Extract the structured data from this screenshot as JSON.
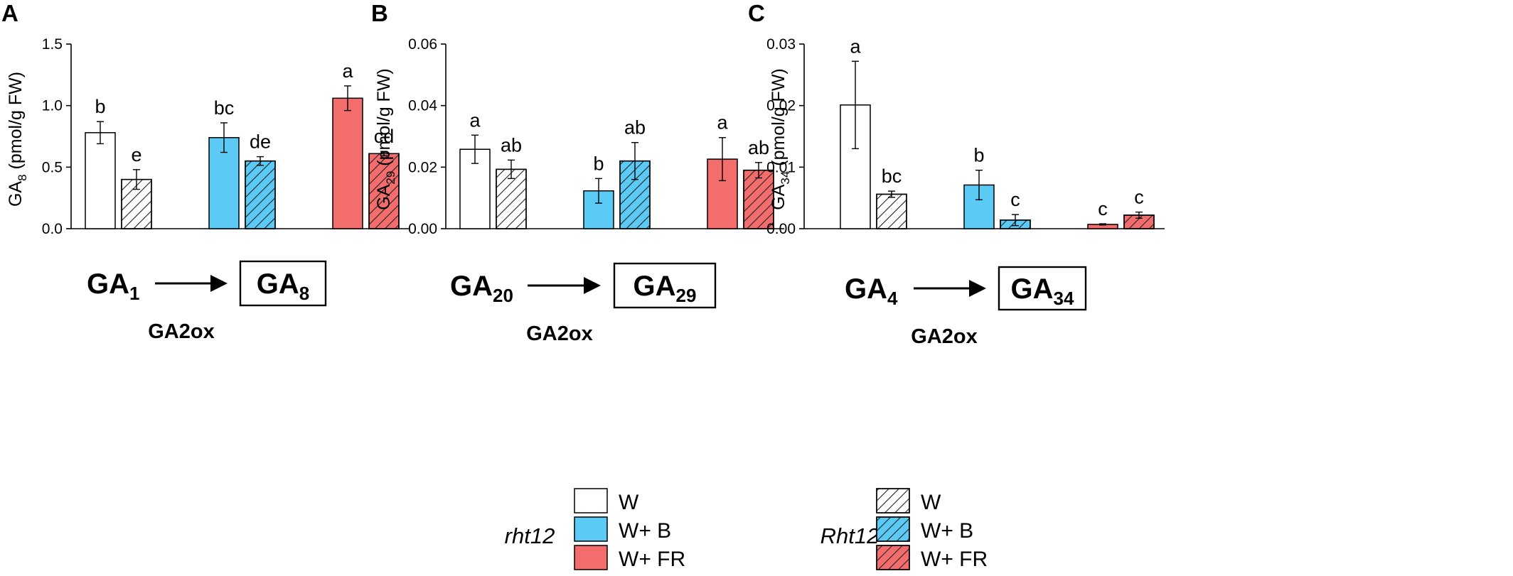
{
  "colors": {
    "rht12_W": "#ffffff",
    "rht12_WB": "#5bcbf5",
    "rht12_WFR": "#f46d6d",
    "hatch_stroke": "#222222",
    "axis": "#000000"
  },
  "chart_data": [
    {
      "type": "bar",
      "panel_label": "A",
      "ylabel_main": "GA",
      "ylabel_sub": "8",
      "ylabel_unit": "(pmol/g FW)",
      "ylim": [
        0,
        1.5
      ],
      "yticks": [
        0,
        0.5,
        1.0,
        1.5
      ],
      "ytick_labels": [
        "0.0",
        "0.5",
        "1.0",
        "1.5"
      ],
      "groups": [
        "W",
        "W+ B",
        "W+ FR"
      ],
      "genotypes": [
        "rht12",
        "Rht12"
      ],
      "bars": [
        {
          "group": "W",
          "genotype": "rht12",
          "value": 0.78,
          "error": 0.09,
          "letter": "b"
        },
        {
          "group": "W",
          "genotype": "Rht12",
          "value": 0.4,
          "error": 0.08,
          "letter": "e"
        },
        {
          "group": "W+ B",
          "genotype": "rht12",
          "value": 0.74,
          "error": 0.12,
          "letter": "bc"
        },
        {
          "group": "W+ B",
          "genotype": "Rht12",
          "value": 0.55,
          "error": 0.035,
          "letter": "de"
        },
        {
          "group": "W+ FR",
          "genotype": "rht12",
          "value": 1.06,
          "error": 0.1,
          "letter": "a"
        },
        {
          "group": "W+ FR",
          "genotype": "Rht12",
          "value": 0.61,
          "error": 0.018,
          "letter": "cd"
        }
      ],
      "pathway": {
        "from_main": "GA",
        "from_sub": "1",
        "to_main": "GA",
        "to_sub": "8",
        "enzyme": "GA2ox"
      }
    },
    {
      "type": "bar",
      "panel_label": "B",
      "ylabel_main": "GA",
      "ylabel_sub": "29",
      "ylabel_unit": "(pmol/g FW)",
      "ylim": [
        0,
        0.06
      ],
      "yticks": [
        0,
        0.02,
        0.04,
        0.06
      ],
      "ytick_labels": [
        "0.00",
        "0.02",
        "0.04",
        "0.06"
      ],
      "groups": [
        "W",
        "W+ B",
        "W+ FR"
      ],
      "genotypes": [
        "rht12",
        "Rht12"
      ],
      "bars": [
        {
          "group": "W",
          "genotype": "rht12",
          "value": 0.0258,
          "error": 0.0046,
          "letter": "a"
        },
        {
          "group": "W",
          "genotype": "Rht12",
          "value": 0.0193,
          "error": 0.003,
          "letter": "ab"
        },
        {
          "group": "W+ B",
          "genotype": "rht12",
          "value": 0.0123,
          "error": 0.004,
          "letter": "b"
        },
        {
          "group": "W+ B",
          "genotype": "Rht12",
          "value": 0.022,
          "error": 0.006,
          "letter": "ab"
        },
        {
          "group": "W+ FR",
          "genotype": "rht12",
          "value": 0.0226,
          "error": 0.007,
          "letter": "a"
        },
        {
          "group": "W+ FR",
          "genotype": "Rht12",
          "value": 0.019,
          "error": 0.0025,
          "letter": "ab"
        }
      ],
      "pathway": {
        "from_main": "GA",
        "from_sub": "20",
        "to_main": "GA",
        "to_sub": "29",
        "enzyme": "GA2ox"
      }
    },
    {
      "type": "bar",
      "panel_label": "C",
      "ylabel_main": "GA",
      "ylabel_sub": "34",
      "ylabel_unit": "(pmol/g FW)",
      "ylim": [
        0,
        0.03
      ],
      "yticks": [
        0,
        0.01,
        0.02,
        0.03
      ],
      "ytick_labels": [
        "0.00",
        "0.01",
        "0.02",
        "0.03"
      ],
      "groups": [
        "W",
        "W+ B",
        "W+ FR"
      ],
      "genotypes": [
        "rht12",
        "Rht12"
      ],
      "bars": [
        {
          "group": "W",
          "genotype": "rht12",
          "value": 0.0201,
          "error": 0.0071,
          "letter": "a"
        },
        {
          "group": "W",
          "genotype": "Rht12",
          "value": 0.0056,
          "error": 0.0005,
          "letter": "bc"
        },
        {
          "group": "W+ B",
          "genotype": "rht12",
          "value": 0.0071,
          "error": 0.0024,
          "letter": "b"
        },
        {
          "group": "W+ B",
          "genotype": "Rht12",
          "value": 0.0014,
          "error": 0.0009,
          "letter": "c"
        },
        {
          "group": "W+ FR",
          "genotype": "rht12",
          "value": 0.0007,
          "error": 0.0001,
          "letter": "c"
        },
        {
          "group": "W+ FR",
          "genotype": "Rht12",
          "value": 0.0022,
          "error": 0.0005,
          "letter": "c"
        }
      ],
      "pathway": {
        "from_main": "GA",
        "from_sub": "4",
        "to_main": "GA",
        "to_sub": "34",
        "enzyme": "GA2ox"
      }
    }
  ],
  "legend": {
    "groups": [
      {
        "genotype": "rht12",
        "entries": [
          {
            "label": "W",
            "fill": "W",
            "hatched": false
          },
          {
            "label": "W+ B",
            "fill": "WB",
            "hatched": false
          },
          {
            "label": "W+ FR",
            "fill": "WFR",
            "hatched": false
          }
        ]
      },
      {
        "genotype": "Rht12",
        "entries": [
          {
            "label": "W",
            "fill": "W",
            "hatched": true
          },
          {
            "label": "W+ B",
            "fill": "WB",
            "hatched": true
          },
          {
            "label": "W+ FR",
            "fill": "WFR",
            "hatched": true
          }
        ]
      }
    ]
  }
}
